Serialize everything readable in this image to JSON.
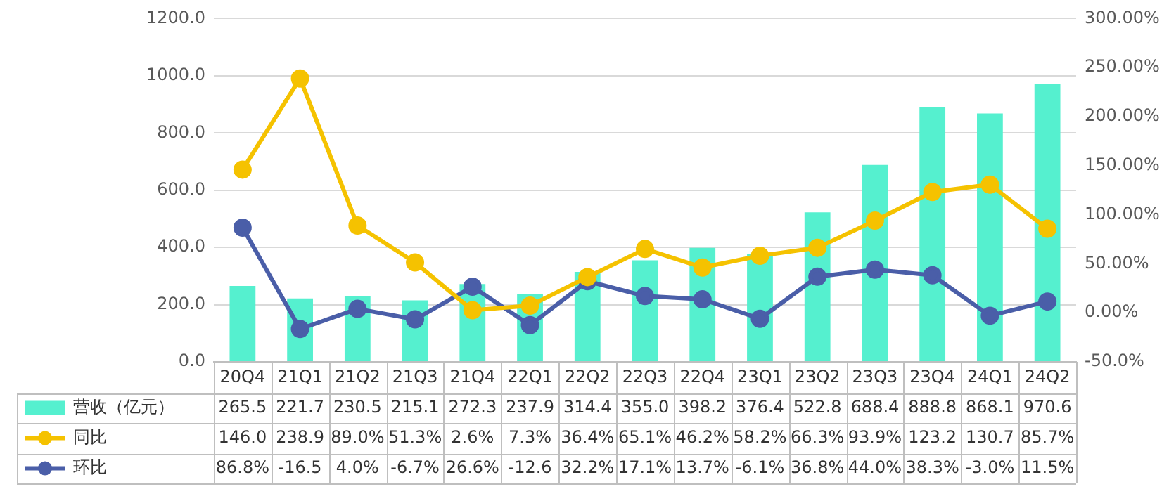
{
  "chart_data": {
    "type": "bar",
    "categories": [
      "20Q4",
      "21Q1",
      "21Q2",
      "21Q3",
      "21Q4",
      "22Q1",
      "22Q2",
      "22Q3",
      "22Q4",
      "23Q1",
      "23Q2",
      "23Q3",
      "23Q4",
      "24Q1",
      "24Q2"
    ],
    "series": [
      {
        "name": "营收（亿元）",
        "color": "#55f0cf",
        "values": [
          265.5,
          221.7,
          230.5,
          215.1,
          272.3,
          237.9,
          314.4,
          355.0,
          398.2,
          376.4,
          522.8,
          688.4,
          888.8,
          868.1,
          970.6
        ],
        "value_labels": [
          "265.5",
          "221.7",
          "230.5",
          "215.1",
          "272.3",
          "237.9",
          "314.4",
          "355.0",
          "398.2",
          "376.4",
          "522.8",
          "688.4",
          "888.8",
          "868.1",
          "970.6"
        ]
      },
      {
        "name": "同比",
        "type": "line",
        "axis": "y2",
        "color": "#f5c200",
        "values": [
          146.0,
          238.9,
          89.0,
          51.3,
          2.6,
          7.3,
          36.4,
          65.1,
          46.2,
          58.2,
          66.3,
          93.9,
          123.2,
          130.7,
          85.7
        ],
        "value_labels": [
          "146.0",
          "238.9",
          "89.0%",
          "51.3%",
          "2.6%",
          "7.3%",
          "36.4%",
          "65.1%",
          "46.2%",
          "58.2%",
          "66.3%",
          "93.9%",
          "123.2",
          "130.7",
          "85.7%"
        ]
      },
      {
        "name": "环比",
        "type": "line",
        "axis": "y2",
        "color": "#4a5ea8",
        "values": [
          86.8,
          -16.5,
          4.0,
          -6.7,
          26.6,
          -12.6,
          32.2,
          17.1,
          13.7,
          -6.1,
          36.8,
          44.0,
          38.3,
          -3.0,
          11.5
        ],
        "value_labels": [
          "86.8%",
          "-16.5",
          "4.0%",
          "-6.7%",
          "26.6%",
          "-12.6",
          "32.2%",
          "17.1%",
          "13.7%",
          "-6.1%",
          "36.8%",
          "44.0%",
          "38.3%",
          "-3.0%",
          "11.5%"
        ]
      }
    ],
    "ylim": [
      0,
      1200
    ],
    "yticks": [
      {
        "value": 0,
        "label": "0.0"
      },
      {
        "value": 200,
        "label": "200.0"
      },
      {
        "value": 400,
        "label": "400.0"
      },
      {
        "value": 600,
        "label": "600.0"
      },
      {
        "value": 800,
        "label": "800.0"
      },
      {
        "value": 1000,
        "label": "1000.0"
      },
      {
        "value": 1200,
        "label": "1200.0"
      }
    ],
    "y2lim": [
      -50,
      300
    ],
    "y2ticks": [
      {
        "value": -50,
        "label": "-50.0%"
      },
      {
        "value": 0,
        "label": "0.00%"
      },
      {
        "value": 50,
        "label": "50.00%"
      },
      {
        "value": 100,
        "label": "100.00%"
      },
      {
        "value": 150,
        "label": "150.00%"
      },
      {
        "value": 200,
        "label": "200.00%"
      },
      {
        "value": 250,
        "label": "250.00%"
      },
      {
        "value": 300,
        "label": "300.00%"
      }
    ],
    "grid": "y",
    "legend": "bottom left",
    "marker": "circle",
    "line_style": "solid"
  }
}
